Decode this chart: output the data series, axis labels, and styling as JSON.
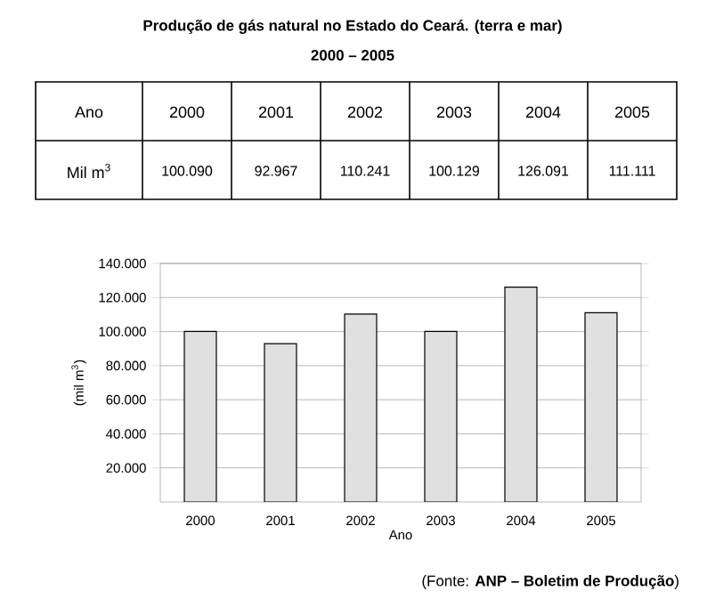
{
  "chart_data": {
    "type": "bar",
    "title": "Produção de gás natural no Estado do Ceará. (terra e mar)",
    "subtitle": "2000 – 2005",
    "xlabel": "Ano",
    "ylabel": "(mil m$^{3}$)",
    "annotations": [
      "Ano",
      "Mil m$^{3}$",
      "(Fonte: **ANP – Boletim de Produção**)"
    ],
    "categories": [
      "2000",
      "2001",
      "2002",
      "2003",
      "2004",
      "2005"
    ],
    "values": [
      100090,
      92967,
      110241,
      100129,
      126091,
      111111
    ],
    "value_labels": [
      "100.090",
      "92.967",
      "110.241",
      "100.129",
      "126.091",
      "111.111"
    ],
    "color": "#e0e0e0",
    "ylim": [
      0,
      140000
    ],
    "yticks": [
      {
        "value": 20000,
        "label": "20.000"
      },
      {
        "value": 40000,
        "label": "40.000"
      },
      {
        "value": 60000,
        "label": "60.000"
      },
      {
        "value": 80000,
        "label": "80.000"
      },
      {
        "value": 100000,
        "label": "100.000"
      },
      {
        "value": 120000,
        "label": "120.000"
      },
      {
        "value": 140000,
        "label": "140.000"
      }
    ],
    "grid": "y"
  }
}
